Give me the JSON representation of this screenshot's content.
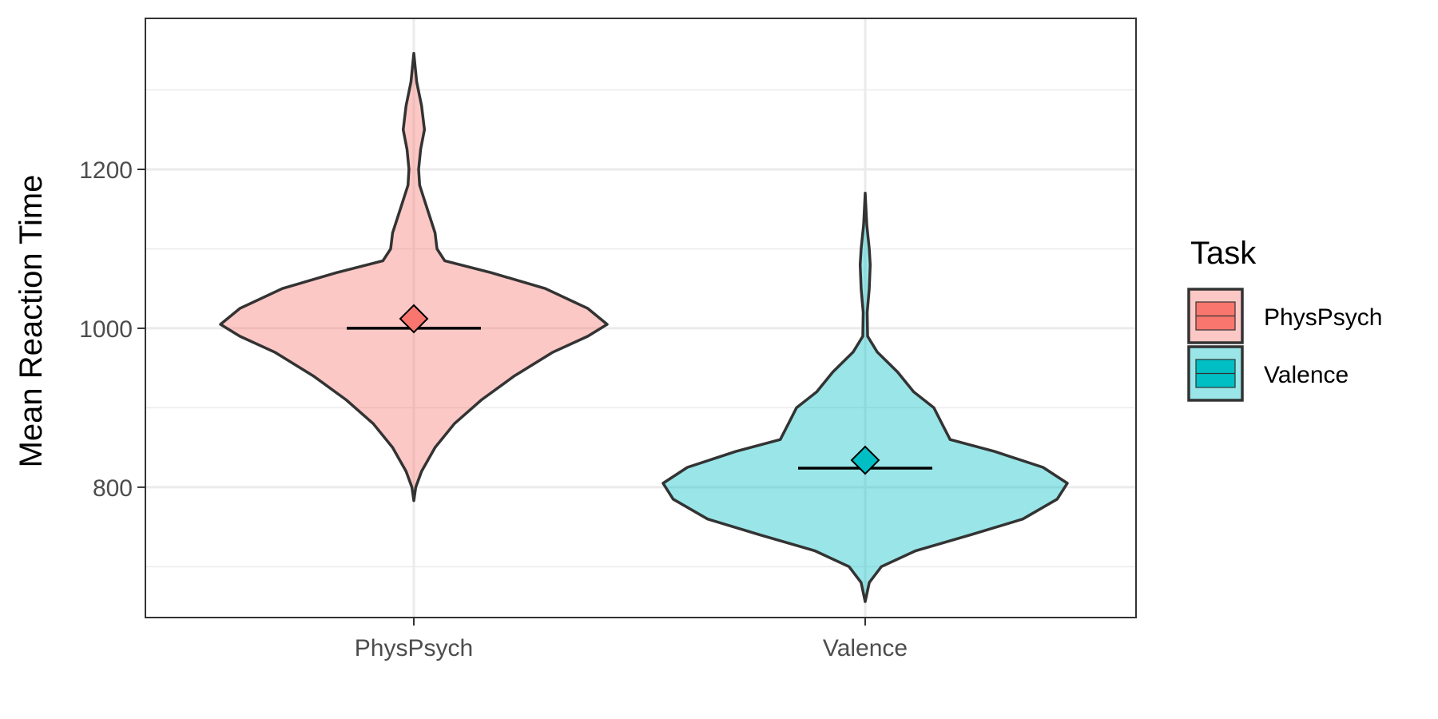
{
  "chart_data": {
    "type": "violin",
    "xlabel": "",
    "ylabel": "Mean Reaction Time",
    "ylim": [
      636,
      1390
    ],
    "yticks": [
      800,
      1000,
      1200
    ],
    "yticks_labels": [
      "800",
      "1000",
      "1200"
    ],
    "yminor": [
      700,
      900,
      1100,
      1300
    ],
    "categories": [
      "PhysPsych",
      "Valence"
    ],
    "grid": true,
    "legend": {
      "title": "Task",
      "position": "right",
      "entries": [
        "PhysPsych",
        "Valence"
      ]
    },
    "series": [
      {
        "category": "PhysPsych",
        "fill": "#f8766d",
        "median": 1000,
        "mean": 1012,
        "range": [
          783,
          1346
        ],
        "density": [
          {
            "y": 783,
            "w": 0.0
          },
          {
            "y": 800,
            "w": 0.01
          },
          {
            "y": 820,
            "w": 0.04
          },
          {
            "y": 850,
            "w": 0.11
          },
          {
            "y": 880,
            "w": 0.21
          },
          {
            "y": 910,
            "w": 0.35
          },
          {
            "y": 940,
            "w": 0.52
          },
          {
            "y": 970,
            "w": 0.72
          },
          {
            "y": 990,
            "w": 0.9
          },
          {
            "y": 1005,
            "w": 1.0
          },
          {
            "y": 1025,
            "w": 0.9
          },
          {
            "y": 1050,
            "w": 0.68
          },
          {
            "y": 1070,
            "w": 0.4
          },
          {
            "y": 1085,
            "w": 0.16
          },
          {
            "y": 1100,
            "w": 0.12
          },
          {
            "y": 1120,
            "w": 0.11
          },
          {
            "y": 1150,
            "w": 0.07
          },
          {
            "y": 1180,
            "w": 0.03
          },
          {
            "y": 1200,
            "w": 0.025
          },
          {
            "y": 1225,
            "w": 0.035
          },
          {
            "y": 1250,
            "w": 0.055
          },
          {
            "y": 1280,
            "w": 0.04
          },
          {
            "y": 1310,
            "w": 0.015
          },
          {
            "y": 1346,
            "w": 0.0
          }
        ]
      },
      {
        "category": "Valence",
        "fill": "#00bfc4",
        "median": 824,
        "mean": 834,
        "range": [
          656,
          1170
        ],
        "density": [
          {
            "y": 656,
            "w": 0.0
          },
          {
            "y": 680,
            "w": 0.02
          },
          {
            "y": 700,
            "w": 0.08
          },
          {
            "y": 720,
            "w": 0.25
          },
          {
            "y": 740,
            "w": 0.52
          },
          {
            "y": 760,
            "w": 0.78
          },
          {
            "y": 785,
            "w": 0.95
          },
          {
            "y": 805,
            "w": 1.0
          },
          {
            "y": 825,
            "w": 0.88
          },
          {
            "y": 845,
            "w": 0.64
          },
          {
            "y": 860,
            "w": 0.42
          },
          {
            "y": 880,
            "w": 0.38
          },
          {
            "y": 900,
            "w": 0.34
          },
          {
            "y": 920,
            "w": 0.24
          },
          {
            "y": 945,
            "w": 0.16
          },
          {
            "y": 970,
            "w": 0.06
          },
          {
            "y": 990,
            "w": 0.012
          },
          {
            "y": 1020,
            "w": 0.01
          },
          {
            "y": 1050,
            "w": 0.02
          },
          {
            "y": 1080,
            "w": 0.025
          },
          {
            "y": 1100,
            "w": 0.02
          },
          {
            "y": 1130,
            "w": 0.008
          },
          {
            "y": 1170,
            "w": 0.0
          }
        ]
      }
    ]
  }
}
